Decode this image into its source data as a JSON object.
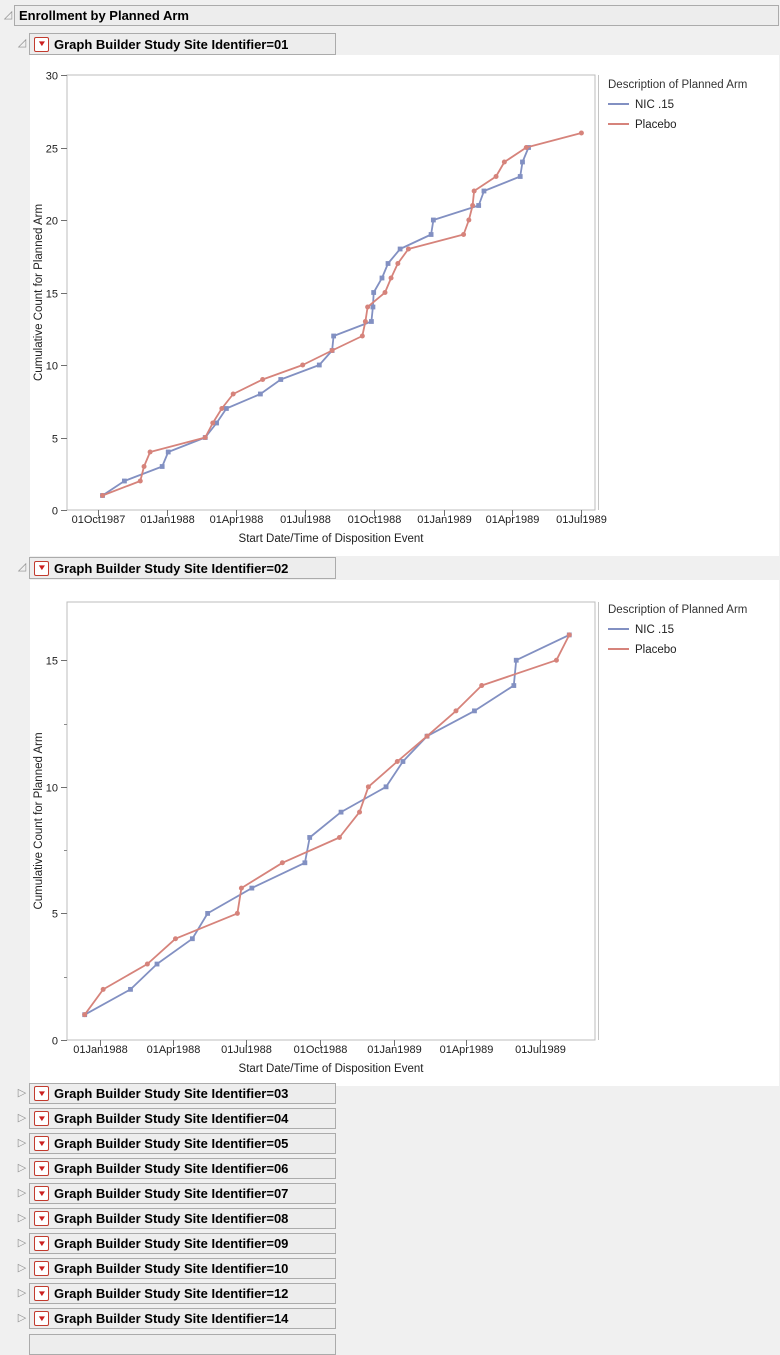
{
  "page": {
    "title": "Enrollment by Planned Arm"
  },
  "icons": {
    "expanded_disclosure": "◿",
    "collapsed_disclosure": "▷",
    "red_menu_triangle": "▼"
  },
  "colors": {
    "nic_line": "#8290c2",
    "placebo_line": "#d6837b",
    "header_bg": "#ededed",
    "header_border": "#ababab",
    "page_bg": "#f0f0f0"
  },
  "sections": [
    {
      "label": "Graph Builder Study Site Identifier=01",
      "expanded": true
    },
    {
      "label": "Graph Builder Study Site Identifier=02",
      "expanded": true
    },
    {
      "label": "Graph Builder Study Site Identifier=03",
      "expanded": false
    },
    {
      "label": "Graph Builder Study Site Identifier=04",
      "expanded": false
    },
    {
      "label": "Graph Builder Study Site Identifier=05",
      "expanded": false
    },
    {
      "label": "Graph Builder Study Site Identifier=06",
      "expanded": false
    },
    {
      "label": "Graph Builder Study Site Identifier=07",
      "expanded": false
    },
    {
      "label": "Graph Builder Study Site Identifier=08",
      "expanded": false
    },
    {
      "label": "Graph Builder Study Site Identifier=09",
      "expanded": false
    },
    {
      "label": "Graph Builder Study Site Identifier=10",
      "expanded": false
    },
    {
      "label": "Graph Builder Study Site Identifier=12",
      "expanded": false
    },
    {
      "label": "Graph Builder Study Site Identifier=14",
      "expanded": false
    }
  ],
  "chart_data": [
    {
      "type": "line",
      "title": "Graph Builder Study Site Identifier=01",
      "xlabel": "Start Date/Time of Disposition Event",
      "ylabel": "Cumulative Count for Planned Arm",
      "legend_title": "Description of Planned Arm",
      "legend_position": "right",
      "ylim": [
        0,
        30
      ],
      "yticks": [
        0,
        5,
        10,
        15,
        20,
        25,
        30
      ],
      "xlim": [
        "1987-08-21",
        "1989-07-20"
      ],
      "xticks": [
        {
          "label": "01Oct1987",
          "date": "1987-10-01"
        },
        {
          "label": "01Jan1988",
          "date": "1988-01-01"
        },
        {
          "label": "01Apr1988",
          "date": "1988-04-01"
        },
        {
          "label": "01Jul1988",
          "date": "1988-07-01"
        },
        {
          "label": "01Oct1988",
          "date": "1988-10-01"
        },
        {
          "label": "01Jan1989",
          "date": "1989-01-01"
        },
        {
          "label": "01Apr1989",
          "date": "1989-04-01"
        },
        {
          "label": "01Jul1989",
          "date": "1989-07-01"
        }
      ],
      "series": [
        {
          "name": "NIC .15",
          "color": "#8290c2",
          "marker": "square",
          "points": [
            [
              "1987-10-07",
              1
            ],
            [
              "1987-11-05",
              2
            ],
            [
              "1987-12-25",
              3
            ],
            [
              "1988-01-02",
              4
            ],
            [
              "1988-02-20",
              5
            ],
            [
              "1988-03-06",
              6
            ],
            [
              "1988-03-19",
              7
            ],
            [
              "1988-05-03",
              8
            ],
            [
              "1988-05-30",
              9
            ],
            [
              "1988-07-20",
              10
            ],
            [
              "1988-08-06",
              11
            ],
            [
              "1988-08-08",
              12
            ],
            [
              "1988-09-27",
              13
            ],
            [
              "1988-09-29",
              14
            ],
            [
              "1988-09-30",
              15
            ],
            [
              "1988-10-11",
              16
            ],
            [
              "1988-10-19",
              17
            ],
            [
              "1988-11-04",
              18
            ],
            [
              "1988-12-15",
              19
            ],
            [
              "1988-12-18",
              20
            ],
            [
              "1989-02-16",
              21
            ],
            [
              "1989-02-23",
              22
            ],
            [
              "1989-04-12",
              23
            ],
            [
              "1989-04-15",
              24
            ],
            [
              "1989-04-23",
              25
            ]
          ]
        },
        {
          "name": "Placebo",
          "color": "#d6837b",
          "marker": "circle",
          "points": [
            [
              "1987-10-07",
              1
            ],
            [
              "1987-11-26",
              2
            ],
            [
              "1987-12-01",
              3
            ],
            [
              "1987-12-09",
              4
            ],
            [
              "1988-02-20",
              5
            ],
            [
              "1988-03-01",
              6
            ],
            [
              "1988-03-13",
              7
            ],
            [
              "1988-03-28",
              8
            ],
            [
              "1988-05-06",
              9
            ],
            [
              "1988-06-28",
              10
            ],
            [
              "1988-08-06",
              11
            ],
            [
              "1988-09-15",
              12
            ],
            [
              "1988-09-19",
              13
            ],
            [
              "1988-09-22",
              14
            ],
            [
              "1988-10-15",
              15
            ],
            [
              "1988-10-23",
              16
            ],
            [
              "1988-11-01",
              17
            ],
            [
              "1988-11-15",
              18
            ],
            [
              "1989-01-27",
              19
            ],
            [
              "1989-02-03",
              20
            ],
            [
              "1989-02-08",
              21
            ],
            [
              "1989-02-10",
              22
            ],
            [
              "1989-03-11",
              23
            ],
            [
              "1989-03-22",
              24
            ],
            [
              "1989-04-20",
              25
            ],
            [
              "1989-07-02",
              26
            ]
          ]
        }
      ]
    },
    {
      "type": "line",
      "title": "Graph Builder Study Site Identifier=02",
      "xlabel": "Start Date/Time of Disposition Event",
      "ylabel": "Cumulative Count for Planned Arm",
      "legend_title": "Description of Planned Arm",
      "legend_position": "right",
      "ylim": [
        0,
        17.3
      ],
      "yticks": [
        0,
        5,
        10,
        15
      ],
      "yticks_minor": [
        2.5,
        7.5,
        12.5
      ],
      "xlim": [
        "1987-11-21",
        "1989-09-08"
      ],
      "xticks": [
        {
          "label": "01Jan1988",
          "date": "1988-01-01"
        },
        {
          "label": "01Apr1988",
          "date": "1988-04-01"
        },
        {
          "label": "01Jul1988",
          "date": "1988-07-01"
        },
        {
          "label": "01Oct1988",
          "date": "1988-10-01"
        },
        {
          "label": "01Jan1989",
          "date": "1989-01-01"
        },
        {
          "label": "01Apr1989",
          "date": "1989-04-01"
        },
        {
          "label": "01Jul1989",
          "date": "1989-07-01"
        }
      ],
      "series": [
        {
          "name": "NIC .15",
          "color": "#8290c2",
          "marker": "square",
          "points": [
            [
              "1987-12-13",
              1
            ],
            [
              "1988-02-08",
              2
            ],
            [
              "1988-03-12",
              3
            ],
            [
              "1988-04-25",
              4
            ],
            [
              "1988-05-14",
              5
            ],
            [
              "1988-07-08",
              6
            ],
            [
              "1988-09-12",
              7
            ],
            [
              "1988-09-18",
              8
            ],
            [
              "1988-10-27",
              9
            ],
            [
              "1988-12-22",
              10
            ],
            [
              "1989-01-12",
              11
            ],
            [
              "1989-02-11",
              12
            ],
            [
              "1989-04-11",
              13
            ],
            [
              "1989-05-30",
              14
            ],
            [
              "1989-06-02",
              15
            ],
            [
              "1989-08-07",
              16
            ]
          ]
        },
        {
          "name": "Placebo",
          "color": "#d6837b",
          "marker": "circle",
          "points": [
            [
              "1987-12-13",
              1
            ],
            [
              "1988-01-05",
              2
            ],
            [
              "1988-02-29",
              3
            ],
            [
              "1988-04-04",
              4
            ],
            [
              "1988-06-20",
              5
            ],
            [
              "1988-06-25",
              6
            ],
            [
              "1988-08-15",
              7
            ],
            [
              "1988-10-25",
              8
            ],
            [
              "1988-11-19",
              9
            ],
            [
              "1988-11-30",
              10
            ],
            [
              "1989-01-05",
              11
            ],
            [
              "1989-02-11",
              12
            ],
            [
              "1989-03-19",
              13
            ],
            [
              "1989-04-20",
              14
            ],
            [
              "1989-07-22",
              15
            ],
            [
              "1989-08-07",
              16
            ]
          ]
        }
      ]
    }
  ]
}
